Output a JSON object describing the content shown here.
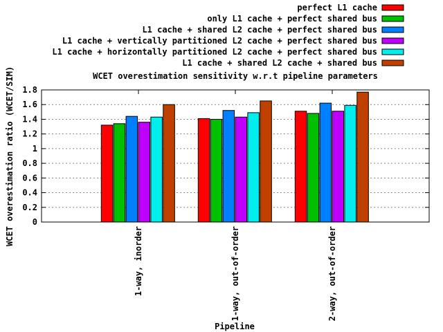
{
  "chart_data": {
    "type": "bar",
    "title": "WCET overestimation sensitivity w.r.t pipeline parameters",
    "xlabel": "Pipeline",
    "ylabel": "WCET overestimation ratio (WCET/SIM)",
    "ylim": [
      0,
      1.8
    ],
    "yticks": [
      "0",
      "0.2",
      "0.4",
      "0.6",
      "0.8",
      "1",
      "1.2",
      "1.4",
      "1.6",
      "1.8"
    ],
    "grid": true,
    "legend_position": "top-right",
    "categories": [
      "1-way, inorder",
      "1-way, out-of-order",
      "2-way, out-of-order"
    ],
    "series": [
      {
        "name": "perfect L1 cache",
        "color": "#ff0000",
        "values": [
          1.32,
          1.41,
          1.51
        ]
      },
      {
        "name": "only L1 cache + perfect shared bus",
        "color": "#00c000",
        "values": [
          1.34,
          1.4,
          1.48
        ]
      },
      {
        "name": "L1 cache + shared L2 cache + perfect shared bus",
        "color": "#0080ff",
        "values": [
          1.44,
          1.52,
          1.62
        ]
      },
      {
        "name": "L1 cache + vertically partitioned L2 cache + perfect shared bus",
        "color": "#c000ff",
        "values": [
          1.36,
          1.43,
          1.51
        ]
      },
      {
        "name": "L1 cache + horizontally partitioned L2 cache + perfect shared bus",
        "color": "#00eeee",
        "values": [
          1.43,
          1.49,
          1.59
        ]
      },
      {
        "name": "L1 cache + shared L2 cache + shared bus",
        "color": "#c04000",
        "values": [
          1.6,
          1.65,
          1.77
        ]
      }
    ]
  }
}
